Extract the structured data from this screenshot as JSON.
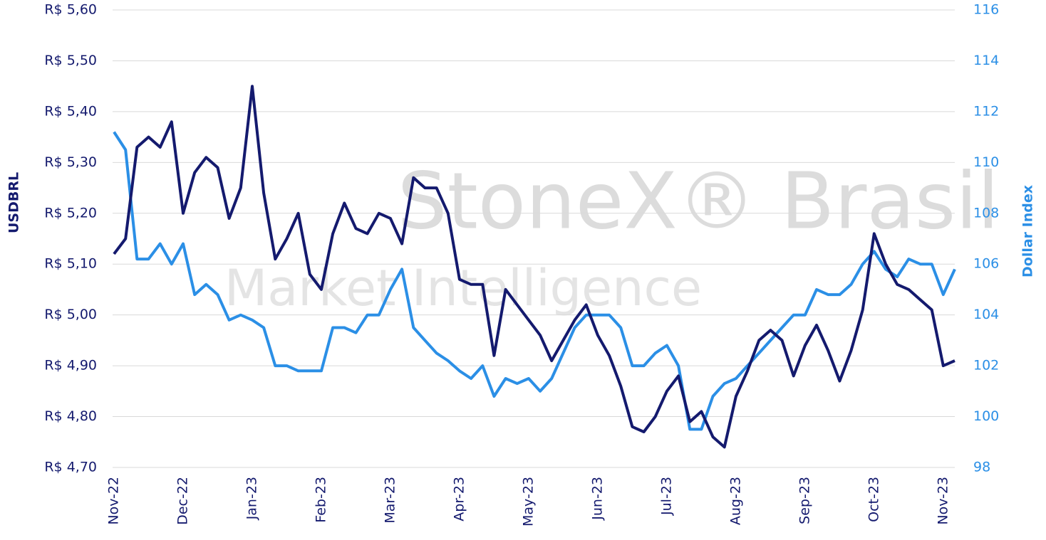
{
  "chart_data": {
    "type": "line",
    "ylabel": "USDBRL",
    "y2label": "Dollar Index",
    "annotations": [
      "StoneX® Brasil",
      "Market Intelligence"
    ],
    "grid": true,
    "categories": [
      "Nov-22",
      null,
      null,
      null,
      null,
      null,
      "Dec-22",
      null,
      null,
      null,
      null,
      null,
      "Jan-23",
      null,
      null,
      null,
      null,
      null,
      "Feb-23",
      null,
      null,
      null,
      null,
      null,
      "Mar-23",
      null,
      null,
      null,
      null,
      null,
      "Apr-23",
      null,
      null,
      null,
      null,
      null,
      "May-23",
      null,
      null,
      null,
      null,
      null,
      "Jun-23",
      null,
      null,
      null,
      null,
      null,
      "Jul-23",
      null,
      null,
      null,
      null,
      null,
      "Aug-23",
      null,
      null,
      null,
      null,
      null,
      "Sep-23",
      null,
      null,
      null,
      null,
      null,
      "Oct-23",
      null,
      null,
      null,
      null,
      null,
      "Nov-23",
      null
    ],
    "ylim": [
      4.7,
      5.6
    ],
    "yticks": [
      {
        "value": 4.7,
        "label": "R$ 4,70"
      },
      {
        "value": 4.8,
        "label": "R$ 4,80"
      },
      {
        "value": 4.9,
        "label": "R$ 4,90"
      },
      {
        "value": 5.0,
        "label": "R$ 5,00"
      },
      {
        "value": 5.1,
        "label": "R$ 5,10"
      },
      {
        "value": 5.2,
        "label": "R$ 5,20"
      },
      {
        "value": 5.3,
        "label": "R$ 5,30"
      },
      {
        "value": 5.4,
        "label": "R$ 5,40"
      },
      {
        "value": 5.5,
        "label": "R$ 5,50"
      },
      {
        "value": 5.6,
        "label": "R$ 5,60"
      }
    ],
    "y2lim": [
      98,
      116
    ],
    "y2ticks": [
      98,
      100,
      102,
      104,
      106,
      108,
      110,
      112,
      114,
      116
    ],
    "series": [
      {
        "color": "#141a6e",
        "values": [
          5.12,
          5.15,
          5.33,
          5.35,
          5.33,
          5.38,
          5.2,
          5.28,
          5.31,
          5.29,
          5.19,
          5.25,
          5.45,
          5.24,
          5.11,
          5.15,
          5.2,
          5.08,
          5.05,
          5.16,
          5.22,
          5.17,
          5.16,
          5.2,
          5.19,
          5.14,
          5.27,
          5.25,
          5.25,
          5.2,
          5.07,
          5.06,
          5.06,
          4.92,
          5.05,
          5.02,
          4.99,
          4.96,
          4.91,
          4.95,
          4.99,
          5.02,
          4.96,
          4.92,
          4.86,
          4.78,
          4.77,
          4.8,
          4.85,
          4.88,
          4.79,
          4.81,
          4.76,
          4.74,
          4.84,
          4.89,
          4.95,
          4.97,
          4.95,
          4.88,
          4.94,
          4.98,
          4.93,
          4.87,
          4.93,
          5.01,
          5.16,
          5.1,
          5.06,
          5.05,
          5.03,
          5.01,
          4.9,
          4.91
        ]
      },
      {
        "color": "#2b8fe6",
        "axis": "y2",
        "values": [
          111.2,
          110.5,
          106.2,
          106.2,
          106.8,
          106.0,
          106.8,
          104.8,
          105.2,
          104.8,
          103.8,
          104.0,
          103.8,
          103.5,
          102.0,
          102.0,
          101.8,
          101.8,
          101.8,
          103.5,
          103.5,
          103.3,
          104.0,
          104.0,
          105.0,
          105.8,
          103.5,
          103.0,
          102.5,
          102.2,
          101.8,
          101.5,
          102.0,
          100.8,
          101.5,
          101.3,
          101.5,
          101.0,
          101.5,
          102.5,
          103.5,
          104.0,
          104.0,
          104.0,
          103.5,
          102.0,
          102.0,
          102.5,
          102.8,
          102.0,
          99.5,
          99.5,
          100.8,
          101.3,
          101.5,
          102.0,
          102.5,
          103.0,
          103.5,
          104.0,
          104.0,
          105.0,
          104.8,
          104.8,
          105.2,
          106.0,
          106.5,
          105.8,
          105.5,
          106.2,
          106.0,
          106.0,
          104.8,
          105.8
        ]
      }
    ]
  }
}
